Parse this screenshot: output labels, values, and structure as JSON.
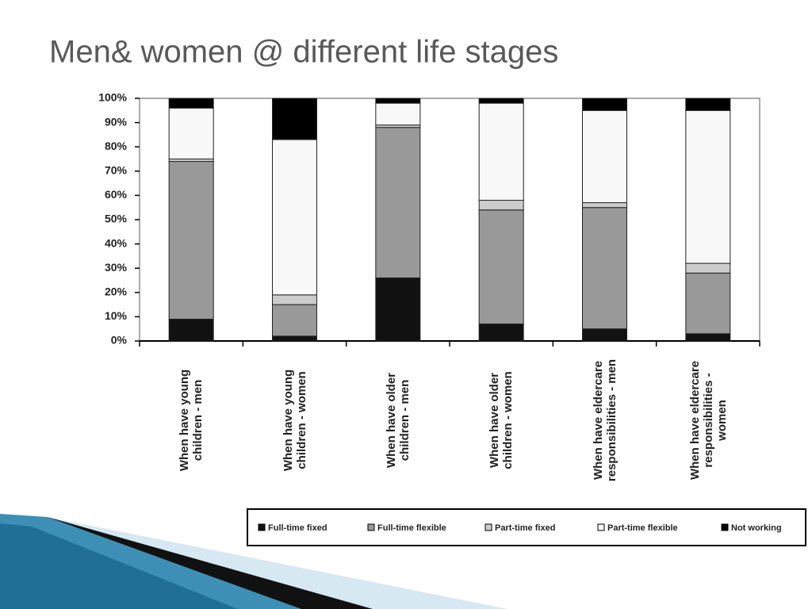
{
  "chart_data": {
    "type": "stacked_bar",
    "title": "Men& women @ different life stages",
    "categories": [
      "When have young children - men",
      "When have young children - women",
      "When have older children - men",
      "When have older children - women",
      "When have eldercare responsibilities - men",
      "When have eldercare responsibilities - women"
    ],
    "series": [
      {
        "name": "Full-time fixed",
        "color": "#111111",
        "values": [
          9,
          2,
          26,
          7,
          5,
          3
        ]
      },
      {
        "name": "Full-time flexible",
        "color": "#999999",
        "values": [
          65,
          13,
          62,
          47,
          50,
          25
        ]
      },
      {
        "name": "Part-time fixed",
        "color": "#cccccc",
        "values": [
          1,
          4,
          1,
          4,
          2,
          4
        ]
      },
      {
        "name": "Part-time flexible",
        "color": "#f8f8f8",
        "values": [
          21,
          64,
          9,
          40,
          38,
          63
        ]
      },
      {
        "name": "Not working",
        "color": "#000000",
        "values": [
          4,
          17,
          2,
          2,
          5,
          5
        ]
      }
    ],
    "ylim": [
      0,
      100
    ],
    "yticks": [
      {
        "value": 0,
        "label": "0%"
      },
      {
        "value": 10,
        "label": "10%"
      },
      {
        "value": 20,
        "label": "20%"
      },
      {
        "value": 30,
        "label": "30%"
      },
      {
        "value": 40,
        "label": "40%"
      },
      {
        "value": 50,
        "label": "50%"
      },
      {
        "value": 60,
        "label": "60%"
      },
      {
        "value": 70,
        "label": "70%"
      },
      {
        "value": 80,
        "label": "80%"
      },
      {
        "value": 90,
        "label": "90%"
      },
      {
        "value": 100,
        "label": "100%"
      }
    ],
    "legend": "bottom"
  }
}
